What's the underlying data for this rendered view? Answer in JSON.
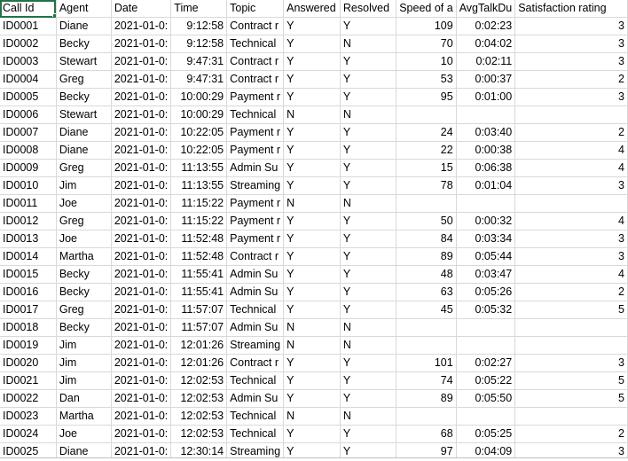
{
  "headers": [
    "Call Id",
    "Agent",
    "Date",
    "Time",
    "Topic",
    "Answered",
    "Resolved",
    "Speed of a",
    "AvgTalkDu",
    "Satisfaction rating"
  ],
  "rows": [
    [
      "ID0001",
      "Diane",
      "2021-01-0:",
      "9:12:58",
      "Contract r",
      "Y",
      "Y",
      "109",
      "0:02:23",
      "3"
    ],
    [
      "ID0002",
      "Becky",
      "2021-01-0:",
      "9:12:58",
      "Technical",
      "Y",
      "N",
      "70",
      "0:04:02",
      "3"
    ],
    [
      "ID0003",
      "Stewart",
      "2021-01-0:",
      "9:47:31",
      "Contract r",
      "Y",
      "Y",
      "10",
      "0:02:11",
      "3"
    ],
    [
      "ID0004",
      "Greg",
      "2021-01-0:",
      "9:47:31",
      "Contract r",
      "Y",
      "Y",
      "53",
      "0:00:37",
      "2"
    ],
    [
      "ID0005",
      "Becky",
      "2021-01-0:",
      "10:00:29",
      "Payment r",
      "Y",
      "Y",
      "95",
      "0:01:00",
      "3"
    ],
    [
      "ID0006",
      "Stewart",
      "2021-01-0:",
      "10:00:29",
      "Technical",
      "N",
      "N",
      "",
      "",
      ""
    ],
    [
      "ID0007",
      "Diane",
      "2021-01-0:",
      "10:22:05",
      "Payment r",
      "Y",
      "Y",
      "24",
      "0:03:40",
      "2"
    ],
    [
      "ID0008",
      "Diane",
      "2021-01-0:",
      "10:22:05",
      "Payment r",
      "Y",
      "Y",
      "22",
      "0:00:38",
      "4"
    ],
    [
      "ID0009",
      "Greg",
      "2021-01-0:",
      "11:13:55",
      "Admin Su",
      "Y",
      "Y",
      "15",
      "0:06:38",
      "4"
    ],
    [
      "ID0010",
      "Jim",
      "2021-01-0:",
      "11:13:55",
      "Streaming",
      "Y",
      "Y",
      "78",
      "0:01:04",
      "3"
    ],
    [
      "ID0011",
      "Joe",
      "2021-01-0:",
      "11:15:22",
      "Payment r",
      "N",
      "N",
      "",
      "",
      ""
    ],
    [
      "ID0012",
      "Greg",
      "2021-01-0:",
      "11:15:22",
      "Payment r",
      "Y",
      "Y",
      "50",
      "0:00:32",
      "4"
    ],
    [
      "ID0013",
      "Joe",
      "2021-01-0:",
      "11:52:48",
      "Payment r",
      "Y",
      "Y",
      "84",
      "0:03:34",
      "3"
    ],
    [
      "ID0014",
      "Martha",
      "2021-01-0:",
      "11:52:48",
      "Contract r",
      "Y",
      "Y",
      "89",
      "0:05:44",
      "3"
    ],
    [
      "ID0015",
      "Becky",
      "2021-01-0:",
      "11:55:41",
      "Admin Su",
      "Y",
      "Y",
      "48",
      "0:03:47",
      "4"
    ],
    [
      "ID0016",
      "Becky",
      "2021-01-0:",
      "11:55:41",
      "Admin Su",
      "Y",
      "Y",
      "63",
      "0:05:26",
      "2"
    ],
    [
      "ID0017",
      "Greg",
      "2021-01-0:",
      "11:57:07",
      "Technical",
      "Y",
      "Y",
      "45",
      "0:05:32",
      "5"
    ],
    [
      "ID0018",
      "Becky",
      "2021-01-0:",
      "11:57:07",
      "Admin Su",
      "N",
      "N",
      "",
      "",
      ""
    ],
    [
      "ID0019",
      "Jim",
      "2021-01-0:",
      "12:01:26",
      "Streaming",
      "N",
      "N",
      "",
      "",
      ""
    ],
    [
      "ID0020",
      "Jim",
      "2021-01-0:",
      "12:01:26",
      "Contract r",
      "Y",
      "Y",
      "101",
      "0:02:27",
      "3"
    ],
    [
      "ID0021",
      "Jim",
      "2021-01-0:",
      "12:02:53",
      "Technical",
      "Y",
      "Y",
      "74",
      "0:05:22",
      "5"
    ],
    [
      "ID0022",
      "Dan",
      "2021-01-0:",
      "12:02:53",
      "Admin Su",
      "Y",
      "Y",
      "89",
      "0:05:50",
      "5"
    ],
    [
      "ID0023",
      "Martha",
      "2021-01-0:",
      "12:02:53",
      "Technical",
      "N",
      "N",
      "",
      "",
      ""
    ],
    [
      "ID0024",
      "Joe",
      "2021-01-0:",
      "12:02:53",
      "Technical",
      "Y",
      "Y",
      "68",
      "0:05:25",
      "2"
    ],
    [
      "ID0025",
      "Diane",
      "2021-01-0:",
      "12:30:14",
      "Streaming",
      "Y",
      "Y",
      "97",
      "0:04:09",
      "3"
    ]
  ]
}
